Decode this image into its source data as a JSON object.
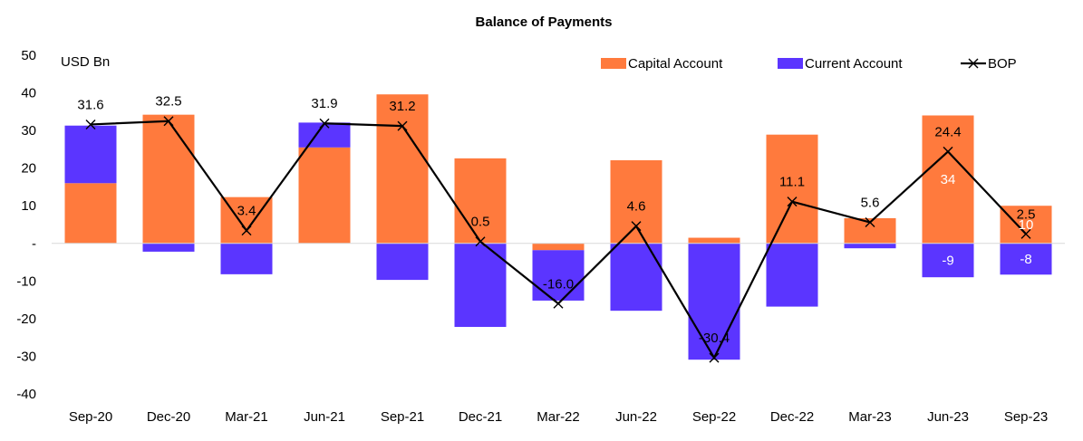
{
  "chart_data": {
    "type": "bar",
    "title": "Balance of Payments",
    "ylabel": "USD Bn",
    "xlabel": "",
    "categories": [
      "Sep-20",
      "Dec-20",
      "Mar-21",
      "Jun-21",
      "Sep-21",
      "Dec-21",
      "Mar-22",
      "Jun-22",
      "Sep-22",
      "Dec-22",
      "Mar-23",
      "Jun-23",
      "Sep-23"
    ],
    "ylim": [
      -40,
      50
    ],
    "yticks": [
      50,
      40,
      30,
      20,
      10,
      0,
      -10,
      -20,
      -30,
      -40
    ],
    "ytick_labels": [
      "50",
      "40",
      "30",
      "20",
      "10",
      "-",
      "-10",
      "-20",
      "-30",
      "-40"
    ],
    "stacked": true,
    "grid": false,
    "legend_position": "top-right",
    "series": [
      {
        "name": "Capital Account",
        "kind": "bar",
        "color": "#FF7A3D",
        "values": [
          16.0,
          34.2,
          12.3,
          25.5,
          39.6,
          22.6,
          -1.8,
          22.1,
          1.5,
          28.9,
          6.7,
          34,
          10
        ],
        "data_labels": [
          "",
          "",
          "",
          "",
          "",
          "",
          "",
          "",
          "",
          "",
          "",
          "34",
          "10"
        ]
      },
      {
        "name": "Current Account",
        "kind": "bar",
        "color": "#5B35FF",
        "values": [
          15.3,
          -2.2,
          -8.2,
          6.6,
          -9.7,
          -22.2,
          -13.4,
          -17.9,
          -30.9,
          -16.8,
          -1.3,
          -9,
          -8.3
        ],
        "data_labels": [
          "",
          "",
          "",
          "",
          "",
          "",
          "",
          "",
          "",
          "",
          "",
          "-9",
          "-8"
        ]
      },
      {
        "name": "BOP",
        "kind": "line",
        "color": "#000000",
        "marker": "x",
        "values": [
          31.6,
          32.5,
          3.4,
          31.9,
          31.2,
          0.5,
          -16.0,
          4.6,
          -30.4,
          11.1,
          5.6,
          24.4,
          2.5
        ],
        "data_labels": [
          "31.6",
          "32.5",
          "3.4",
          "31.9",
          "31.2",
          "0.5",
          "-16.0",
          "4.6",
          "-30.4",
          "11.1",
          "5.6",
          "24.4",
          "2.5"
        ]
      }
    ]
  }
}
